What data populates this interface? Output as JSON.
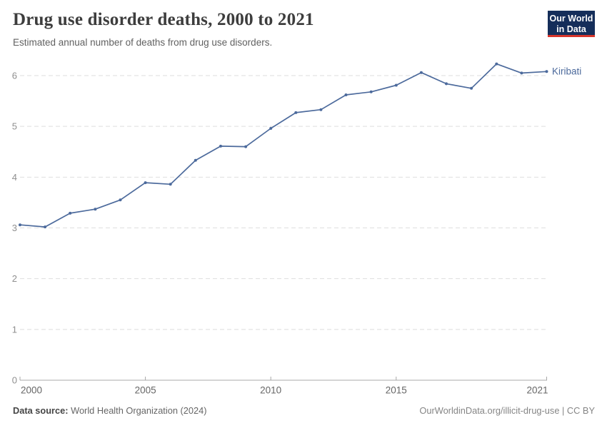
{
  "header": {
    "title": "Drug use disorder deaths, 2000 to 2021",
    "subtitle": "Estimated annual number of deaths from drug use disorders."
  },
  "logo": {
    "line1": "Our World",
    "line2": "in Data",
    "bg_color": "#152e5a",
    "accent_color": "#d8352a"
  },
  "chart_data": {
    "type": "line",
    "title": "Drug use disorder deaths, 2000 to 2021",
    "xlabel": "",
    "ylabel": "",
    "x": [
      2000,
      2001,
      2002,
      2003,
      2004,
      2005,
      2006,
      2007,
      2008,
      2009,
      2010,
      2011,
      2012,
      2013,
      2014,
      2015,
      2016,
      2017,
      2018,
      2019,
      2020,
      2021
    ],
    "series": [
      {
        "name": "Kiribati",
        "color": "#4c6a9c",
        "values": [
          3.06,
          3.02,
          3.29,
          3.37,
          3.55,
          3.89,
          3.86,
          4.33,
          4.61,
          4.6,
          4.96,
          5.27,
          5.33,
          5.62,
          5.68,
          5.81,
          6.06,
          5.84,
          5.75,
          6.23,
          6.05,
          6.08
        ]
      }
    ],
    "ylim": [
      0,
      6
    ],
    "yticks": [
      0,
      1,
      2,
      3,
      4,
      5,
      6
    ],
    "xticks": [
      2000,
      2005,
      2010,
      2015,
      2021
    ],
    "grid": "horizontal-dashed",
    "grid_color": "#dedede",
    "axis_color": "#a8a8a8",
    "ytick_label_color": "#8f8f8f",
    "xtick_label_color": "#666666",
    "point_markers": true,
    "legend_position": "end-of-line"
  },
  "footer": {
    "source_label": "Data source:",
    "source": "World Health Organization (2024)",
    "credit": "OurWorldinData.org/illicit-drug-use | CC BY"
  }
}
